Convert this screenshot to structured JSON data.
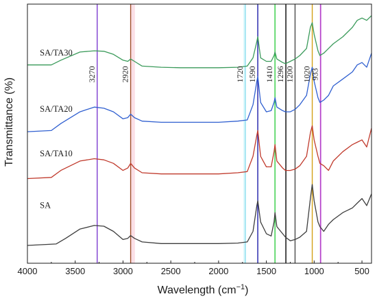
{
  "chart_data": {
    "type": "line",
    "xlabel": "Wavelength (cm",
    "xlabel_sup": "−1",
    "xlabel_close": ")",
    "ylabel": "Transmittance (%)",
    "xlim": [
      4000,
      400
    ],
    "x_reversed": true,
    "x_ticks": [
      4000,
      3500,
      3000,
      2500,
      2000,
      1500,
      1000,
      500
    ],
    "x_tick_labels": [
      "4000",
      "3500",
      "3000",
      "2500",
      "2000",
      "1500",
      "1000",
      "500"
    ],
    "ylim": [
      0,
      100
    ],
    "y_ticks_labeled": false,
    "grid": false,
    "series": [
      {
        "name": "SA",
        "color": "#3d3d3d",
        "label_pos": [
          3870,
          16
        ],
        "values": [
          [
            4000,
            0
          ],
          [
            3700,
            0.6
          ],
          [
            3600,
            3
          ],
          [
            3450,
            7
          ],
          [
            3300,
            8.5
          ],
          [
            3200,
            8.2
          ],
          [
            3100,
            6
          ],
          [
            3000,
            2.5
          ],
          [
            2950,
            3
          ],
          [
            2920,
            4.2
          ],
          [
            2880,
            3
          ],
          [
            2800,
            1.5
          ],
          [
            2600,
            0.8
          ],
          [
            2400,
            0.8
          ],
          [
            2000,
            0.8
          ],
          [
            1800,
            1
          ],
          [
            1700,
            1.5
          ],
          [
            1640,
            6
          ],
          [
            1600,
            17
          ],
          [
            1590,
            19
          ],
          [
            1560,
            10
          ],
          [
            1500,
            5
          ],
          [
            1450,
            4
          ],
          [
            1420,
            10
          ],
          [
            1410,
            14
          ],
          [
            1390,
            8
          ],
          [
            1330,
            5
          ],
          [
            1300,
            3.5
          ],
          [
            1250,
            2
          ],
          [
            1200,
            2.5
          ],
          [
            1150,
            3.5
          ],
          [
            1080,
            6
          ],
          [
            1040,
            20
          ],
          [
            1020,
            26
          ],
          [
            1000,
            19
          ],
          [
            960,
            10
          ],
          [
            940,
            8
          ],
          [
            900,
            6
          ],
          [
            850,
            9
          ],
          [
            800,
            11
          ],
          [
            700,
            14
          ],
          [
            600,
            16
          ],
          [
            550,
            18
          ],
          [
            500,
            20
          ],
          [
            450,
            17
          ],
          [
            400,
            22
          ]
        ]
      },
      {
        "name": "SA/TA10",
        "color": "#c0392b",
        "label_pos": [
          3870,
          38
        ],
        "values": [
          [
            4000,
            28.5
          ],
          [
            3750,
            29
          ],
          [
            3650,
            32
          ],
          [
            3450,
            36
          ],
          [
            3300,
            37
          ],
          [
            3200,
            36.5
          ],
          [
            3100,
            35
          ],
          [
            3000,
            32
          ],
          [
            2950,
            33
          ],
          [
            2920,
            35
          ],
          [
            2880,
            33
          ],
          [
            2800,
            31
          ],
          [
            2600,
            30.5
          ],
          [
            2400,
            30.5
          ],
          [
            2000,
            30.5
          ],
          [
            1800,
            31
          ],
          [
            1700,
            31.5
          ],
          [
            1640,
            38
          ],
          [
            1600,
            47
          ],
          [
            1590,
            49
          ],
          [
            1560,
            38
          ],
          [
            1500,
            33.5
          ],
          [
            1450,
            33.5
          ],
          [
            1420,
            40
          ],
          [
            1410,
            43
          ],
          [
            1390,
            36
          ],
          [
            1330,
            33
          ],
          [
            1300,
            32
          ],
          [
            1250,
            32
          ],
          [
            1200,
            32.5
          ],
          [
            1150,
            34
          ],
          [
            1080,
            38
          ],
          [
            1040,
            48
          ],
          [
            1020,
            51
          ],
          [
            1000,
            45
          ],
          [
            960,
            38
          ],
          [
            940,
            35
          ],
          [
            900,
            34
          ],
          [
            850,
            32
          ],
          [
            800,
            36
          ],
          [
            700,
            40
          ],
          [
            600,
            43
          ],
          [
            550,
            44
          ],
          [
            500,
            45
          ],
          [
            450,
            42
          ],
          [
            400,
            50
          ]
        ]
      },
      {
        "name": "SA/TA20",
        "color": "#2f5fd0",
        "label_pos": [
          3870,
          57
        ],
        "values": [
          [
            4000,
            48.5
          ],
          [
            3750,
            49
          ],
          [
            3650,
            52
          ],
          [
            3450,
            57
          ],
          [
            3300,
            59
          ],
          [
            3200,
            58.5
          ],
          [
            3100,
            57
          ],
          [
            3000,
            54
          ],
          [
            2950,
            54.5
          ],
          [
            2920,
            56
          ],
          [
            2880,
            54.5
          ],
          [
            2800,
            53
          ],
          [
            2600,
            52.5
          ],
          [
            2400,
            52.5
          ],
          [
            2000,
            52.5
          ],
          [
            1800,
            53
          ],
          [
            1700,
            53.5
          ],
          [
            1640,
            60
          ],
          [
            1600,
            70
          ],
          [
            1590,
            72
          ],
          [
            1560,
            61
          ],
          [
            1500,
            57
          ],
          [
            1450,
            57.5
          ],
          [
            1420,
            61
          ],
          [
            1410,
            63
          ],
          [
            1390,
            59
          ],
          [
            1330,
            57.5
          ],
          [
            1300,
            57
          ],
          [
            1250,
            57
          ],
          [
            1200,
            58
          ],
          [
            1150,
            60
          ],
          [
            1080,
            64
          ],
          [
            1040,
            73
          ],
          [
            1020,
            76
          ],
          [
            1000,
            70
          ],
          [
            960,
            63
          ],
          [
            940,
            61
          ],
          [
            900,
            62
          ],
          [
            850,
            64
          ],
          [
            800,
            68
          ],
          [
            700,
            71
          ],
          [
            600,
            74
          ],
          [
            550,
            77
          ],
          [
            500,
            78
          ],
          [
            450,
            76
          ],
          [
            400,
            82
          ]
        ]
      },
      {
        "name": "SA/TA30",
        "color": "#3a9a5a",
        "label_pos": [
          3870,
          81
        ],
        "values": [
          [
            4000,
            77
          ],
          [
            3750,
            77
          ],
          [
            3650,
            79
          ],
          [
            3450,
            82.5
          ],
          [
            3300,
            83
          ],
          [
            3200,
            82.8
          ],
          [
            3100,
            81.5
          ],
          [
            3000,
            79
          ],
          [
            2950,
            78.5
          ],
          [
            2920,
            79.5
          ],
          [
            2880,
            78.5
          ],
          [
            2800,
            76.5
          ],
          [
            2600,
            76
          ],
          [
            2400,
            75.8
          ],
          [
            2000,
            75.8
          ],
          [
            1800,
            76
          ],
          [
            1700,
            76.5
          ],
          [
            1640,
            80
          ],
          [
            1600,
            87
          ],
          [
            1590,
            89
          ],
          [
            1560,
            80
          ],
          [
            1500,
            78.5
          ],
          [
            1450,
            78.5
          ],
          [
            1420,
            81
          ],
          [
            1410,
            82.5
          ],
          [
            1390,
            79.5
          ],
          [
            1330,
            78
          ],
          [
            1300,
            77.5
          ],
          [
            1250,
            78.5
          ],
          [
            1200,
            79.5
          ],
          [
            1150,
            81
          ],
          [
            1080,
            84
          ],
          [
            1040,
            93
          ],
          [
            1020,
            95
          ],
          [
            1000,
            90
          ],
          [
            960,
            83
          ],
          [
            940,
            81
          ],
          [
            900,
            82
          ],
          [
            850,
            84
          ],
          [
            800,
            86
          ],
          [
            700,
            89
          ],
          [
            600,
            93
          ],
          [
            550,
            96
          ],
          [
            500,
            97
          ],
          [
            450,
            96
          ],
          [
            400,
            98
          ]
        ]
      }
    ],
    "reference_lines": [
      {
        "x": 3270,
        "label": "3270",
        "color": "#7d3bd1"
      },
      {
        "x": 2920,
        "label": "2920",
        "color": "#a0522d"
      },
      {
        "x": 1720,
        "label": "1720",
        "color": "#8fe0ef"
      },
      {
        "x": 1590,
        "label": "1590",
        "color": "#1a1aa8"
      },
      {
        "x": 1410,
        "label": "1410",
        "color": "#2ecc40"
      },
      {
        "x": 1296,
        "label": "1296",
        "color": "#000000"
      },
      {
        "x": 1200,
        "label": "1200",
        "color": "#4a4a4a"
      },
      {
        "x": 1020,
        "label": "1020",
        "color": "#d4a017"
      },
      {
        "x": 933,
        "label": "933",
        "color": "#b03ac8"
      }
    ],
    "reference_bands": [
      {
        "x_from": 2925,
        "x_to": 2875,
        "color": "#f7c6d4"
      },
      {
        "x_from": 1740,
        "x_to": 1715,
        "color": "#bdf1f8"
      },
      {
        "x_from": 945,
        "x_to": 920,
        "color": "#f0c8f0"
      }
    ],
    "peak_label_y": 73
  }
}
